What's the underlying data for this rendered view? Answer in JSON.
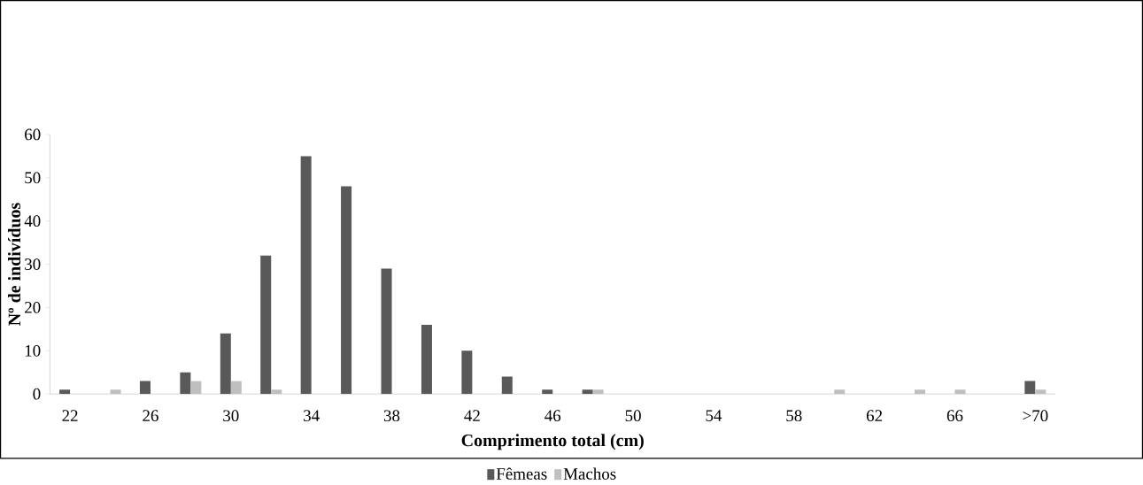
{
  "chart_data": {
    "type": "bar",
    "xlabel": "Comprimento total (cm)",
    "ylabel": "Nº de indivíduos",
    "categories": [
      "22",
      null,
      "26",
      null,
      "30",
      null,
      "34",
      null,
      "38",
      null,
      "42",
      null,
      "46",
      null,
      "50",
      null,
      "54",
      null,
      "58",
      null,
      "62",
      null,
      "66",
      null,
      ">70"
    ],
    "series": [
      {
        "name": "Fêmeas",
        "color": "#595959",
        "values": [
          1,
          0,
          3,
          5,
          14,
          32,
          55,
          48,
          29,
          16,
          10,
          4,
          1,
          1,
          0,
          0,
          0,
          0,
          0,
          0,
          0,
          0,
          0,
          0,
          3
        ]
      },
      {
        "name": "Machos",
        "color": "#bfbfbf",
        "values": [
          0,
          1,
          0,
          3,
          3,
          1,
          0,
          0,
          0,
          0,
          0,
          0,
          0,
          1,
          0,
          0,
          0,
          0,
          0,
          1,
          0,
          1,
          1,
          0,
          1
        ]
      }
    ],
    "ylim": [
      0,
      60
    ],
    "yticks": [
      0,
      10,
      20,
      30,
      40,
      50,
      60
    ],
    "grid": false,
    "legend": "bottom"
  }
}
